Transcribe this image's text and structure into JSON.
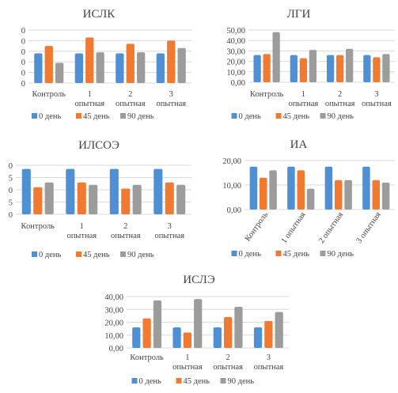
{
  "colors": {
    "s0": "#4f8fd4",
    "s1": "#f07a31",
    "s2": "#9c9c9c",
    "grid": "#d9d9d9",
    "text": "#444444"
  },
  "chart_data": [
    {
      "type": "bar",
      "title": "ИСЛК",
      "categories": [
        [
          "Контроль"
        ],
        [
          "1",
          "опытная"
        ],
        [
          "2",
          "опытная"
        ],
        [
          "3",
          "опытная"
        ]
      ],
      "ytick_labels": [
        "0",
        "0",
        "0",
        "0",
        "0",
        "0"
      ],
      "ylim": [
        0,
        5
      ],
      "series": [
        {
          "name": "0 день",
          "values": [
            2.8,
            2.8,
            2.8,
            2.8
          ]
        },
        {
          "name": "45 день",
          "values": [
            3.5,
            4.3,
            3.7,
            4.0
          ]
        },
        {
          "name": "90 день",
          "values": [
            1.9,
            2.9,
            2.9,
            3.3
          ]
        }
      ]
    },
    {
      "type": "bar",
      "title": "ЛГИ",
      "categories": [
        [
          "Контроль"
        ],
        [
          "1",
          "опытная"
        ],
        [
          "2",
          "опытная"
        ],
        [
          "3",
          "опытная"
        ]
      ],
      "ytick_labels": [
        "0,00",
        "10,00",
        "20,00",
        "30,00",
        "40,00",
        "50,00"
      ],
      "ylim": [
        0,
        50
      ],
      "series": [
        {
          "name": "0 день",
          "values": [
            26,
            26,
            26,
            26
          ]
        },
        {
          "name": "45 день",
          "values": [
            27,
            23,
            26,
            24
          ]
        },
        {
          "name": "90 день",
          "values": [
            48,
            31,
            32,
            27
          ]
        }
      ]
    },
    {
      "type": "bar",
      "title": "ИЛСОЭ",
      "categories": [
        [
          "Контроль"
        ],
        [
          "1",
          "опытная"
        ],
        [
          "2",
          "опытная"
        ],
        [
          "3",
          "опытная"
        ]
      ],
      "ytick_labels": [
        "0",
        "5",
        "0",
        "5",
        "0"
      ],
      "ylim": [
        0,
        4
      ],
      "series": [
        {
          "name": "0 день",
          "values": [
            3.7,
            3.7,
            3.7,
            3.7
          ]
        },
        {
          "name": "45 день",
          "values": [
            2.2,
            2.6,
            2.1,
            2.6
          ]
        },
        {
          "name": "90 день",
          "values": [
            2.6,
            2.4,
            2.4,
            2.4
          ]
        }
      ]
    },
    {
      "type": "bar",
      "title": "ИА",
      "categories": [
        [
          "Контроль"
        ],
        [
          "1 опытная"
        ],
        [
          "2 опытная"
        ],
        [
          "3 опытная"
        ]
      ],
      "rotated_labels": true,
      "ytick_labels": [
        "0,00",
        "10,00",
        "20,00"
      ],
      "ylim": [
        0,
        20
      ],
      "series": [
        {
          "name": "0 день",
          "values": [
            17.5,
            17.5,
            17.5,
            17.5
          ]
        },
        {
          "name": "45 день",
          "values": [
            13,
            16,
            12,
            12
          ]
        },
        {
          "name": "90 день",
          "values": [
            16,
            8.5,
            12,
            11
          ]
        }
      ]
    },
    {
      "type": "bar",
      "title": "ИСЛЭ",
      "categories": [
        [
          "Контроль"
        ],
        [
          "1",
          "опытная"
        ],
        [
          "2",
          "опытная"
        ],
        [
          "3",
          "опытная"
        ]
      ],
      "ytick_labels": [
        "0,00",
        "10,00",
        "20,00",
        "30,00",
        "40,00"
      ],
      "ylim": [
        0,
        40
      ],
      "series": [
        {
          "name": "0 день",
          "values": [
            16,
            16,
            16,
            16
          ]
        },
        {
          "name": "45 день",
          "values": [
            23,
            12,
            24,
            21
          ]
        },
        {
          "name": "90 день",
          "values": [
            37,
            38,
            32,
            28
          ]
        }
      ]
    }
  ]
}
